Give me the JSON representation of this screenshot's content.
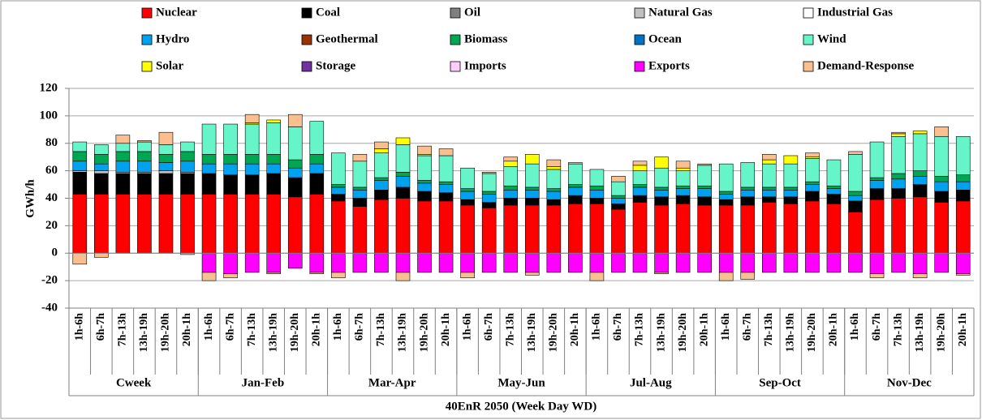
{
  "chart_data": {
    "type": "stacked_bar",
    "ylabel": "GWh/h",
    "xlabel": "40EnR 2050 (Week Day WD)",
    "groups": [
      "Cweek",
      "Jan-Feb",
      "Mar-Apr",
      "May-Jun",
      "Jul-Aug",
      "Sep-Oct",
      "Nov-Dec"
    ],
    "categories": [
      "1h-6h",
      "6h-7h",
      "7h-13h",
      "13h-19h",
      "19h-20h",
      "20h-1h",
      "1h-6h",
      "6h-7h",
      "7h-13h",
      "13h-19h",
      "19h-20h",
      "20h-1h",
      "1h-6h",
      "6h-7h",
      "7h-13h",
      "13h-19h",
      "19h-20h",
      "20h-1h",
      "1h-6h",
      "6h-7h",
      "7h-13h",
      "13h-19h",
      "19h-20h",
      "20h-1h",
      "1h-6h",
      "6h-7h",
      "7h-13h",
      "13h-19h",
      "19h-20h",
      "20h-1h",
      "1h-6h",
      "6h-7h",
      "7h-13h",
      "13h-19h",
      "19h-20h",
      "20h-1h",
      "1h-6h",
      "6h-7h",
      "7h-13h",
      "13h-19h",
      "19h-20h",
      "20h-1h"
    ],
    "ylim": [
      -40,
      120
    ],
    "yticks": [
      -40,
      -20,
      0,
      20,
      40,
      60,
      80,
      100,
      120
    ],
    "grid": true,
    "legend": "top",
    "series": [
      {
        "name": "Nuclear",
        "color": "#ff0000",
        "values": [
          43,
          43,
          43,
          43,
          43,
          43,
          43,
          43,
          43,
          43,
          41,
          43,
          38,
          34,
          39,
          40,
          38,
          38,
          35,
          33,
          35,
          35,
          35,
          36,
          36,
          32,
          37,
          35,
          36,
          35,
          35,
          35,
          37,
          36,
          38,
          36,
          30,
          39,
          40,
          41,
          37,
          38
        ]
      },
      {
        "name": "Coal",
        "color": "#000000",
        "values": [
          16,
          15,
          15,
          15,
          15,
          15,
          15,
          14,
          14,
          15,
          14,
          15,
          5,
          6,
          7,
          8,
          7,
          6,
          4,
          4,
          5,
          5,
          4,
          6,
          4,
          4,
          5,
          6,
          6,
          6,
          4,
          6,
          4,
          5,
          7,
          7,
          8,
          8,
          7,
          9,
          8,
          8
        ]
      },
      {
        "name": "Oil",
        "color": "#808080",
        "values": [
          0,
          0,
          0,
          0,
          0,
          0,
          0,
          0,
          0,
          0,
          0,
          0,
          0,
          0,
          0,
          0,
          0,
          0,
          0,
          0,
          0,
          0,
          0,
          0,
          0,
          0,
          0,
          0,
          0,
          0,
          0,
          0,
          0,
          0,
          0,
          0,
          0,
          0,
          0,
          0,
          0,
          0
        ]
      },
      {
        "name": "Natural Gas",
        "color": "#c0c0c0",
        "values": [
          1,
          2,
          1,
          1,
          2,
          1,
          0,
          0,
          0,
          0,
          0,
          0,
          0,
          0,
          0,
          0,
          0,
          0,
          0,
          0,
          0,
          0,
          0,
          0,
          0,
          0,
          0,
          0,
          0,
          0,
          0,
          0,
          0,
          0,
          0,
          0,
          0,
          0,
          0,
          0,
          0,
          0
        ]
      },
      {
        "name": "Industrial Gas",
        "color": "#ffffff",
        "values": [
          0,
          0,
          0,
          0,
          0,
          0,
          0,
          0,
          0,
          0,
          0,
          0,
          0,
          0,
          0,
          0,
          0,
          0,
          0,
          0,
          0,
          0,
          0,
          0,
          0,
          0,
          0,
          0,
          0,
          0,
          0,
          0,
          0,
          0,
          0,
          0,
          0,
          0,
          0,
          0,
          0,
          0
        ]
      },
      {
        "name": "Hydro",
        "color": "#00a2f0",
        "values": [
          7,
          5,
          8,
          8,
          6,
          8,
          7,
          8,
          8,
          7,
          7,
          7,
          5,
          6,
          7,
          8,
          6,
          6,
          6,
          6,
          6,
          6,
          6,
          6,
          6,
          4,
          6,
          5,
          5,
          6,
          4,
          5,
          5,
          5,
          5,
          4,
          4,
          6,
          7,
          6,
          7,
          6
        ]
      },
      {
        "name": "Geothermal",
        "color": "#993300",
        "values": [
          0,
          0,
          0,
          0,
          0,
          0,
          0,
          0,
          0,
          0,
          0,
          0,
          0,
          0,
          0,
          0,
          0,
          0,
          0,
          0,
          0,
          0,
          0,
          0,
          0,
          0,
          0,
          0,
          0,
          0,
          0,
          0,
          0,
          0,
          0,
          0,
          0,
          0,
          0,
          0,
          0,
          0
        ]
      },
      {
        "name": "Biomass",
        "color": "#00a650",
        "values": [
          7,
          7,
          7,
          7,
          6,
          7,
          7,
          7,
          7,
          7,
          6,
          7,
          2,
          2,
          2,
          3,
          2,
          2,
          2,
          2,
          3,
          2,
          2,
          2,
          3,
          2,
          2,
          2,
          2,
          2,
          2,
          2,
          2,
          2,
          2,
          2,
          3,
          2,
          4,
          4,
          4,
          5
        ]
      },
      {
        "name": "Ocean",
        "color": "#0070c0",
        "values": [
          0,
          0,
          0,
          0,
          0,
          0,
          0,
          0,
          0,
          0,
          0,
          0,
          0,
          0,
          0,
          0,
          0,
          0,
          0,
          0,
          0,
          0,
          0,
          0,
          0,
          0,
          0,
          0,
          0,
          0,
          0,
          0,
          0,
          0,
          0,
          0,
          0,
          0,
          0,
          0,
          0,
          0
        ]
      },
      {
        "name": "Wind",
        "color": "#66f5c8",
        "values": [
          7,
          7,
          6,
          7,
          7,
          7,
          22,
          22,
          22,
          23,
          24,
          24,
          23,
          19,
          18,
          20,
          18,
          19,
          15,
          13,
          14,
          17,
          14,
          15,
          12,
          10,
          10,
          14,
          11,
          15,
          20,
          18,
          17,
          17,
          17,
          19,
          27,
          26,
          27,
          27,
          29,
          28
        ]
      },
      {
        "name": "Solar",
        "color": "#ffff00",
        "values": [
          0,
          0,
          0,
          0,
          0,
          0,
          0,
          0,
          1,
          2,
          0,
          0,
          0,
          0,
          3,
          5,
          1,
          0,
          0,
          0,
          4,
          7,
          2,
          0,
          0,
          0,
          4,
          8,
          2,
          0,
          0,
          0,
          3,
          6,
          1,
          0,
          0,
          0,
          2,
          2,
          0,
          0
        ]
      },
      {
        "name": "Storage",
        "color": "#7030a0",
        "values": [
          0,
          0,
          0,
          0,
          0,
          0,
          0,
          0,
          0,
          0,
          0,
          0,
          0,
          0,
          0,
          0,
          0,
          0,
          0,
          0,
          0,
          0,
          0,
          0,
          0,
          0,
          0,
          0,
          0,
          0,
          0,
          0,
          0,
          0,
          0,
          0,
          0,
          0,
          0,
          0,
          0,
          0
        ]
      },
      {
        "name": "Imports",
        "color": "#ffccff",
        "values": [
          0,
          0,
          0,
          0,
          0,
          0,
          0,
          0,
          0,
          0,
          0,
          0,
          0,
          0,
          0,
          0,
          0,
          0,
          0,
          0,
          0,
          0,
          0,
          0,
          0,
          0,
          0,
          0,
          0,
          0,
          0,
          0,
          0,
          0,
          0,
          0,
          0,
          0,
          0,
          0,
          0,
          0
        ]
      },
      {
        "name": "Exports",
        "color": "#ff00ff",
        "values": [
          0,
          0,
          0,
          0,
          0,
          0,
          -14,
          -15,
          -14,
          -14,
          -11,
          -14,
          -14,
          -14,
          -14,
          -14,
          -14,
          -14,
          -14,
          -14,
          -14,
          -14,
          -14,
          -14,
          -14,
          -14,
          -14,
          -14,
          -14,
          -14,
          -14,
          -14,
          -14,
          -14,
          -14,
          -14,
          -14,
          -15,
          -14,
          -15,
          -14,
          -15
        ]
      },
      {
        "name": "Demand-Response",
        "color": "#fabf8f",
        "values": [
          -8,
          -3,
          6,
          1,
          9,
          -1,
          -6,
          -3,
          6,
          -1,
          9,
          -1,
          -4,
          5,
          5,
          -6,
          6,
          5,
          -4,
          1,
          3,
          -2,
          5,
          1,
          -6,
          4,
          3,
          -1,
          5,
          1,
          -6,
          -5,
          4,
          0,
          3,
          0,
          2,
          -3,
          1,
          -3,
          7,
          -1
        ]
      }
    ]
  }
}
